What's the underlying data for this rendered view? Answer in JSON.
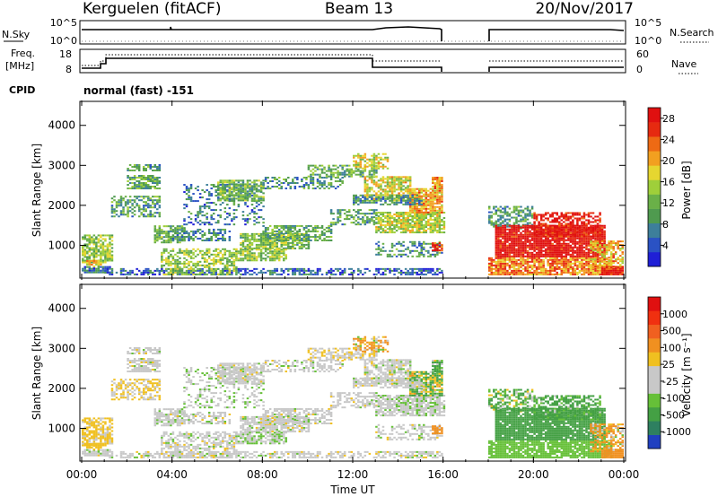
{
  "header": {
    "station": "Kerguelen (fitACF)",
    "beam": "Beam 13",
    "date": "20/Nov/2017"
  },
  "nsky_panel": {
    "left_label": "N.Sky",
    "left_ticks": [
      "10^5",
      "10^0"
    ],
    "right_label": "N.Search",
    "right_ticks": [
      "10^5",
      "10^0"
    ]
  },
  "freq_panel": {
    "left_label_top": "Freq.",
    "left_label_bottom": "[MHz]",
    "left_ticks": [
      "18",
      "8"
    ],
    "right_label": "Nave",
    "right_ticks": [
      "60",
      "0"
    ]
  },
  "cpid_panel": {
    "label": "CPID",
    "text": "normal (fast) -151"
  },
  "colors": {
    "power": [
      "#1f1fd6",
      "#2a52c4",
      "#3d7f9a",
      "#4f9a4f",
      "#6ab048",
      "#9fcf3a",
      "#e6d630",
      "#f2a020",
      "#ee6a14",
      "#e62a10",
      "#e01010"
    ],
    "velocity": [
      "#2040c0",
      "#2e8060",
      "#44a044",
      "#66c038",
      "#c8c8c8",
      "#c8c8c8",
      "#f0c020",
      "#f09020",
      "#f06020",
      "#f03010",
      "#e01010"
    ],
    "missing": "#ffffff"
  },
  "chart_data": [
    {
      "type": "heatmap",
      "name": "power",
      "xlabel": "Time UT",
      "ylabel": "Slant Range [km]",
      "x_tick_labels": [
        "00:00",
        "04:00",
        "08:00",
        "12:00",
        "16:00",
        "20:00",
        "00:00"
      ],
      "x_ticks_hours": [
        0,
        4,
        8,
        12,
        16,
        20,
        24
      ],
      "ylim": [
        180,
        4600
      ],
      "y_ticks": [
        1000,
        2000,
        3000,
        4000
      ],
      "colorbar_label": "Power [dB]",
      "colorbar_ticks": [
        "4",
        "8",
        "12",
        "16",
        "20",
        "24",
        "28"
      ],
      "colorbar_range": [
        0,
        30
      ],
      "data_gap_hours": [
        16,
        18
      ]
    },
    {
      "type": "heatmap",
      "name": "velocity",
      "xlabel": "Time UT",
      "ylabel": "Slant Range [km]",
      "x_tick_labels": [
        "00:00",
        "04:00",
        "08:00",
        "12:00",
        "16:00",
        "20:00",
        "00:00"
      ],
      "x_ticks_hours": [
        0,
        4,
        8,
        12,
        16,
        20,
        24
      ],
      "ylim": [
        180,
        4600
      ],
      "y_ticks": [
        1000,
        2000,
        3000,
        4000
      ],
      "colorbar_label": "Velocity [m s⁻¹]",
      "colorbar_ticks": [
        "1000",
        "500",
        "100",
        "25",
        "-25",
        "-100",
        "-500",
        "-1000"
      ],
      "data_gap_hours": [
        16,
        18
      ]
    }
  ]
}
